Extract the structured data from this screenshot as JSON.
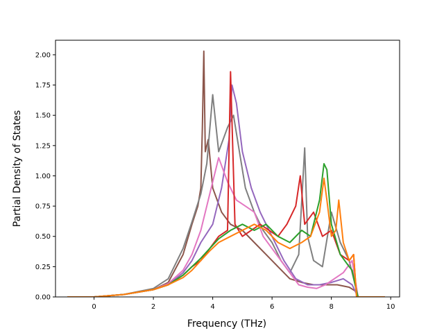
{
  "chart_data": {
    "type": "line",
    "title": "",
    "xlabel": "Frequency (THz)",
    "ylabel": "Partial Density of States",
    "xlim": [
      -1.3,
      10.3
    ],
    "ylim": [
      0.0,
      2.12
    ],
    "xticks": [
      0,
      2,
      4,
      6,
      8,
      10
    ],
    "xtick_labels": [
      "0",
      "2",
      "4",
      "6",
      "8",
      "10"
    ],
    "yticks": [
      0.0,
      0.25,
      0.5,
      0.75,
      1.0,
      1.25,
      1.5,
      1.75,
      2.0
    ],
    "ytick_labels": [
      "0.00",
      "0.25",
      "0.50",
      "0.75",
      "1.00",
      "1.25",
      "1.50",
      "1.75",
      "2.00"
    ],
    "grid": false,
    "legend": "none",
    "series": [
      {
        "color": "#8c564b",
        "x": [
          -0.9,
          0,
          1,
          2,
          2.5,
          3,
          3.3,
          3.5,
          3.6,
          3.65,
          3.7,
          3.75,
          3.85,
          4.0,
          4.3,
          4.6,
          5.0,
          5.4,
          5.8,
          6.2,
          6.6,
          7.0,
          7.4,
          7.8,
          8.2,
          8.6,
          8.8,
          8.9,
          9.8
        ],
        "y": [
          0,
          0,
          0.02,
          0.06,
          0.12,
          0.35,
          0.6,
          0.75,
          0.9,
          1.4,
          2.03,
          1.2,
          1.3,
          0.9,
          0.7,
          0.6,
          0.55,
          0.45,
          0.35,
          0.25,
          0.15,
          0.12,
          0.1,
          0.1,
          0.1,
          0.08,
          0.05,
          0,
          0
        ]
      },
      {
        "color": "#7f7f7f",
        "x": [
          -0.9,
          0,
          1,
          2,
          2.5,
          3,
          3.3,
          3.6,
          3.8,
          4.0,
          4.2,
          4.5,
          4.7,
          4.9,
          5.1,
          5.4,
          5.7,
          6.0,
          6.3,
          6.6,
          6.9,
          7.1,
          7.2,
          7.4,
          7.7,
          8.0,
          8.3,
          8.6,
          8.8,
          8.9,
          9.8
        ],
        "y": [
          0,
          0,
          0.02,
          0.07,
          0.15,
          0.4,
          0.62,
          0.85,
          1.1,
          1.67,
          1.2,
          1.4,
          1.5,
          1.2,
          0.9,
          0.7,
          0.55,
          0.45,
          0.3,
          0.2,
          0.35,
          1.23,
          0.5,
          0.3,
          0.25,
          0.7,
          0.45,
          0.3,
          0.1,
          0,
          0
        ]
      },
      {
        "color": "#9467bd",
        "x": [
          -0.9,
          0,
          1,
          2,
          2.5,
          3,
          3.3,
          3.6,
          4.0,
          4.3,
          4.55,
          4.65,
          4.8,
          5.0,
          5.3,
          5.6,
          6.0,
          6.4,
          6.8,
          7.2,
          7.6,
          8.0,
          8.4,
          8.7,
          8.9,
          9.8
        ],
        "y": [
          0,
          0,
          0.02,
          0.06,
          0.1,
          0.2,
          0.3,
          0.45,
          0.6,
          0.9,
          1.3,
          1.75,
          1.6,
          1.2,
          0.9,
          0.7,
          0.5,
          0.3,
          0.15,
          0.1,
          0.1,
          0.12,
          0.15,
          0.1,
          0,
          0
        ]
      },
      {
        "color": "#e377c2",
        "x": [
          -0.9,
          0,
          1,
          2,
          2.5,
          3,
          3.3,
          3.6,
          3.9,
          4.2,
          4.5,
          4.8,
          5.1,
          5.4,
          5.7,
          6.0,
          6.3,
          6.6,
          6.9,
          7.2,
          7.5,
          7.8,
          8.1,
          8.4,
          8.7,
          8.9,
          9.8
        ],
        "y": [
          0,
          0,
          0.02,
          0.06,
          0.11,
          0.22,
          0.35,
          0.55,
          0.85,
          1.15,
          0.95,
          0.8,
          0.75,
          0.7,
          0.5,
          0.4,
          0.3,
          0.2,
          0.1,
          0.08,
          0.07,
          0.1,
          0.15,
          0.2,
          0.3,
          0,
          0
        ]
      },
      {
        "color": "#d62728",
        "x": [
          -0.9,
          0,
          1,
          2,
          2.5,
          3,
          3.3,
          3.6,
          3.9,
          4.2,
          4.5,
          4.6,
          4.75,
          5.0,
          5.3,
          5.6,
          5.9,
          6.2,
          6.5,
          6.8,
          6.95,
          7.1,
          7.4,
          7.7,
          8.0,
          8.3,
          8.6,
          8.75,
          8.85,
          9.8
        ],
        "y": [
          0,
          0,
          0.02,
          0.06,
          0.1,
          0.18,
          0.25,
          0.3,
          0.4,
          0.5,
          0.55,
          1.86,
          0.6,
          0.5,
          0.55,
          0.6,
          0.55,
          0.5,
          0.6,
          0.75,
          1.0,
          0.6,
          0.7,
          0.5,
          0.55,
          0.35,
          0.3,
          0.35,
          0,
          0
        ]
      },
      {
        "color": "#2ca02c",
        "x": [
          -0.9,
          0,
          1,
          2,
          2.5,
          3,
          3.3,
          3.6,
          3.9,
          4.2,
          4.6,
          5.0,
          5.4,
          5.8,
          6.2,
          6.6,
          7.0,
          7.3,
          7.6,
          7.75,
          7.85,
          8.0,
          8.3,
          8.6,
          8.7,
          8.8,
          8.9,
          9.8
        ],
        "y": [
          0,
          0,
          0.02,
          0.06,
          0.1,
          0.18,
          0.25,
          0.32,
          0.4,
          0.48,
          0.55,
          0.6,
          0.55,
          0.6,
          0.5,
          0.45,
          0.55,
          0.5,
          0.8,
          1.1,
          1.05,
          0.6,
          0.35,
          0.25,
          0.22,
          0.1,
          0,
          0
        ]
      },
      {
        "color": "#ff7f0e",
        "x": [
          -0.9,
          0,
          1,
          2,
          2.5,
          3,
          3.3,
          3.6,
          3.9,
          4.2,
          4.6,
          5.0,
          5.4,
          5.8,
          6.2,
          6.6,
          7.0,
          7.3,
          7.6,
          7.75,
          7.85,
          8.0,
          8.15,
          8.25,
          8.4,
          8.6,
          8.75,
          8.85,
          9.8
        ],
        "y": [
          0,
          0,
          0.02,
          0.06,
          0.1,
          0.16,
          0.22,
          0.3,
          0.38,
          0.45,
          0.5,
          0.55,
          0.6,
          0.55,
          0.45,
          0.4,
          0.45,
          0.5,
          0.7,
          0.98,
          0.8,
          0.5,
          0.55,
          0.8,
          0.45,
          0.3,
          0.35,
          0,
          0
        ]
      }
    ]
  }
}
